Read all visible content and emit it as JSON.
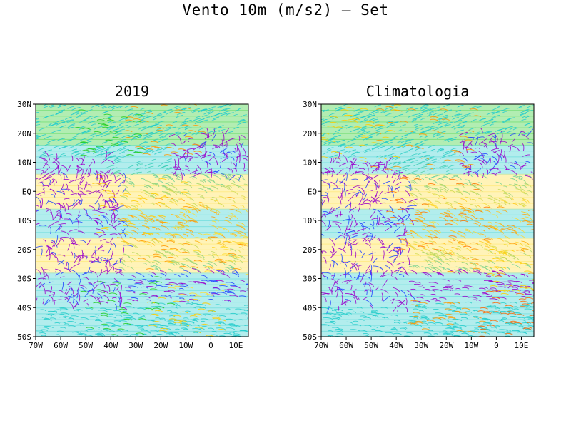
{
  "title": "Vento 10m (m/s2) – Set",
  "panels": [
    {
      "id": "2019",
      "title": "2019",
      "lat_labels": [
        "30N",
        "20N",
        "10N",
        "EQ",
        "10S",
        "20S",
        "30S",
        "40S",
        "50S"
      ],
      "lon_labels": [
        "70W",
        "60W",
        "50W",
        "40W",
        "30W",
        "20W",
        "10W",
        "0",
        "10E"
      ],
      "lat_range": [
        -50,
        30
      ],
      "lon_range": [
        -70,
        15
      ],
      "blobs": [
        {
          "lon": -20,
          "lat": 22,
          "color": "#ff9900",
          "r": 6
        },
        {
          "lon": -42,
          "lat": 20,
          "color": "#22cc22",
          "r": 5
        },
        {
          "lon": -30,
          "lat": -5,
          "color": "#ffcc00",
          "r": 7
        },
        {
          "lon": -10,
          "lat": -15,
          "color": "#ff9900",
          "r": 8
        },
        {
          "lon": 0,
          "lat": -25,
          "color": "#ffdd33",
          "r": 7
        },
        {
          "lon": -35,
          "lat": -40,
          "color": "#22cc22",
          "r": 7
        },
        {
          "lon": -10,
          "lat": -45,
          "color": "#ffcc00",
          "r": 6
        }
      ]
    },
    {
      "id": "clim",
      "title": "Climatologia",
      "lat_labels": [
        "30N",
        "20N",
        "10N",
        "EQ",
        "10S",
        "20S",
        "30S",
        "40S",
        "50S"
      ],
      "lon_labels": [
        "70W",
        "60W",
        "50W",
        "40W",
        "30W",
        "20W",
        "10W",
        "0",
        "10E"
      ],
      "lat_range": [
        -50,
        30
      ],
      "lon_range": [
        -70,
        15
      ],
      "blobs": [
        {
          "lon": -30,
          "lat": 18,
          "color": "#ff9900",
          "r": 8
        },
        {
          "lon": -55,
          "lat": 20,
          "color": "#ffcc00",
          "r": 6
        },
        {
          "lon": -25,
          "lat": -8,
          "color": "#ff7700",
          "r": 8
        },
        {
          "lon": 0,
          "lat": -18,
          "color": "#ff9900",
          "r": 8
        },
        {
          "lon": 8,
          "lat": -28,
          "color": "#ffcc00",
          "r": 5
        },
        {
          "lon": -20,
          "lat": -46,
          "color": "#ff9900",
          "r": 6
        },
        {
          "lon": 5,
          "lat": -42,
          "color": "#ff6600",
          "r": 5
        }
      ]
    }
  ],
  "colors": {
    "calm": "#9900cc",
    "low": "#2244ff",
    "mid": "#22cccc",
    "green": "#22cc22",
    "yellow": "#ffdd33",
    "orange": "#ff9900",
    "red": "#ff2200"
  }
}
